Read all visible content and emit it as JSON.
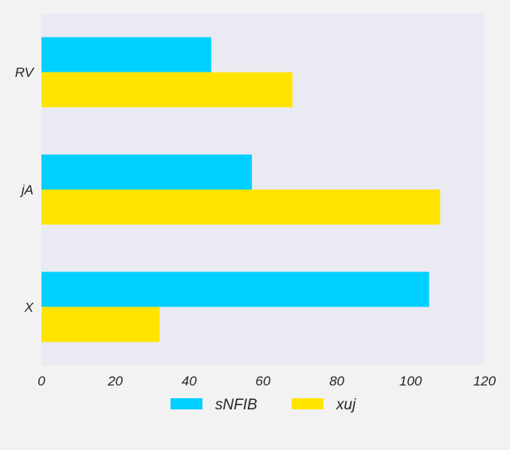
{
  "chart_data": {
    "type": "bar",
    "orientation": "horizontal",
    "title": "",
    "xlabel": "",
    "ylabel": "",
    "categories": [
      "RV",
      "jA",
      "X"
    ],
    "series": [
      {
        "name": "sNFIB",
        "color": "#00d0ff",
        "values": [
          46,
          57,
          105
        ]
      },
      {
        "name": "xuj",
        "color": "#ffe400",
        "values": [
          68,
          108,
          32
        ]
      }
    ],
    "xlim": [
      0,
      120
    ],
    "xticks": [
      0,
      20,
      40,
      60,
      80,
      100,
      120
    ],
    "grid": false,
    "legend": "bottom-center",
    "background": "#eaeaf2"
  }
}
